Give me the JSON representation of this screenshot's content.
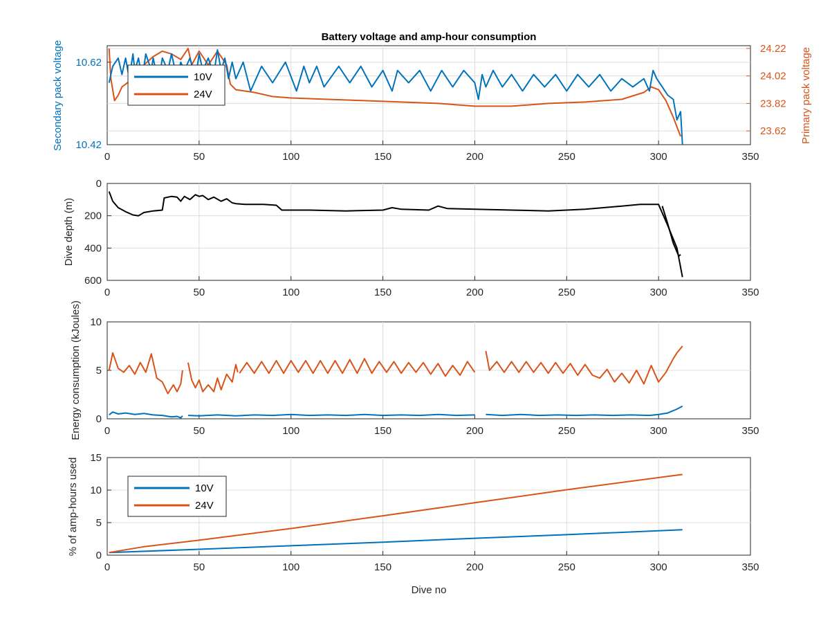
{
  "colors": {
    "v10": "#0072BD",
    "v24": "#D95319",
    "depth": "#000000",
    "axis": "#262626",
    "grid": "#dcdcdc"
  },
  "chart_data": [
    {
      "id": "voltage",
      "type": "line",
      "title": "Battery voltage and amp-hour consumption",
      "xlabel": "",
      "ylabel": "Secondary pack voltage",
      "ylabel_right": "Primary pack voltage",
      "xlim": [
        0,
        350
      ],
      "xticks": [
        "0",
        "50",
        "100",
        "150",
        "200",
        "250",
        "300",
        "350"
      ],
      "ylim": [
        10.42,
        10.66
      ],
      "yticks": [
        "10.42",
        "10.62"
      ],
      "ylim_right": [
        23.52,
        24.24
      ],
      "yticks_right": [
        "23.62",
        "23.82",
        "24.02",
        "24.22"
      ],
      "grid": true,
      "legend": {
        "position": "top-left",
        "entries": [
          "10V",
          "24V"
        ]
      },
      "series": [
        {
          "name": "10V",
          "axis": "left",
          "x": [
            1,
            3,
            6,
            8,
            10,
            12,
            14,
            15,
            17,
            19,
            21,
            24,
            25,
            28,
            30,
            33,
            35,
            38,
            40,
            42,
            45,
            48,
            50,
            52,
            55,
            58,
            60,
            62,
            64,
            66,
            68,
            70,
            74,
            78,
            84,
            90,
            97,
            103,
            107,
            110,
            114,
            118,
            126,
            132,
            138,
            144,
            150,
            155,
            158,
            164,
            170,
            176,
            182,
            188,
            194,
            200,
            202,
            204,
            206,
            210,
            215,
            220,
            226,
            232,
            238,
            244,
            250,
            256,
            262,
            268,
            274,
            280,
            286,
            292,
            295,
            297,
            299,
            302,
            305,
            308,
            310,
            312,
            313
          ],
          "y": [
            10.57,
            10.61,
            10.63,
            10.59,
            10.63,
            10.58,
            10.64,
            10.6,
            10.63,
            10.58,
            10.64,
            10.6,
            10.63,
            10.57,
            10.63,
            10.6,
            10.64,
            10.58,
            10.62,
            10.6,
            10.63,
            10.58,
            10.64,
            10.6,
            10.63,
            10.59,
            10.65,
            10.6,
            10.63,
            10.58,
            10.62,
            10.58,
            10.62,
            10.55,
            10.61,
            10.57,
            10.62,
            10.55,
            10.61,
            10.57,
            10.61,
            10.56,
            10.61,
            10.57,
            10.61,
            10.56,
            10.6,
            10.55,
            10.6,
            10.57,
            10.6,
            10.55,
            10.6,
            10.56,
            10.6,
            10.57,
            10.53,
            10.59,
            10.56,
            10.6,
            10.56,
            10.59,
            10.55,
            10.59,
            10.56,
            10.59,
            10.55,
            10.59,
            10.56,
            10.59,
            10.55,
            10.58,
            10.56,
            10.58,
            10.55,
            10.6,
            10.58,
            10.56,
            10.54,
            10.53,
            10.48,
            10.5,
            10.42
          ]
        },
        {
          "name": "24V",
          "axis": "right",
          "x": [
            1,
            2,
            4,
            6,
            8,
            12,
            16,
            20,
            25,
            30,
            35,
            40,
            44,
            46,
            50,
            55,
            60,
            65,
            67,
            70,
            80,
            90,
            100,
            120,
            140,
            160,
            180,
            190,
            200,
            220,
            240,
            260,
            280,
            292,
            296,
            300,
            304,
            308,
            312
          ],
          "y": [
            24.22,
            24.0,
            23.84,
            23.88,
            23.94,
            23.98,
            24.02,
            24.1,
            24.16,
            24.2,
            24.18,
            24.14,
            24.22,
            24.1,
            24.2,
            24.1,
            24.2,
            24.1,
            23.96,
            23.92,
            23.9,
            23.87,
            23.86,
            23.85,
            23.84,
            23.83,
            23.82,
            23.81,
            23.8,
            23.8,
            23.82,
            23.83,
            23.85,
            23.9,
            23.94,
            23.92,
            23.84,
            23.72,
            23.58
          ]
        }
      ]
    },
    {
      "id": "depth",
      "type": "line",
      "title": "",
      "xlabel": "",
      "ylabel": "Dive depth (m)",
      "xlim": [
        0,
        350
      ],
      "xticks": [
        "0",
        "50",
        "100",
        "150",
        "200",
        "250",
        "300",
        "350"
      ],
      "ylim": [
        0,
        600
      ],
      "y_reversed": true,
      "yticks": [
        "0",
        "200",
        "400",
        "600"
      ],
      "grid": true,
      "series": [
        {
          "name": "",
          "x": [
            1,
            3,
            6,
            10,
            14,
            17,
            20,
            25,
            30,
            31,
            35,
            38,
            40,
            42,
            45,
            48,
            50,
            52,
            55,
            58,
            62,
            65,
            68,
            70,
            75,
            85,
            92,
            95,
            110,
            130,
            150,
            155,
            160,
            175,
            180,
            185,
            200,
            220,
            240,
            260,
            270,
            280,
            290,
            300,
            305,
            310,
            313
          ],
          "y": [
            50,
            110,
            150,
            175,
            195,
            200,
            180,
            170,
            165,
            90,
            80,
            85,
            110,
            80,
            100,
            70,
            80,
            75,
            100,
            85,
            110,
            95,
            120,
            125,
            130,
            130,
            135,
            165,
            165,
            170,
            165,
            150,
            160,
            165,
            140,
            155,
            160,
            165,
            170,
            160,
            150,
            140,
            130,
            130,
            260,
            400,
            580
          ]
        },
        {
          "name": "",
          "x": [
            302,
            305,
            308,
            311,
            312
          ],
          "y": [
            140,
            250,
            370,
            450,
            440
          ]
        }
      ]
    },
    {
      "id": "energy",
      "type": "line",
      "title": "",
      "xlabel": "",
      "ylabel": "Energy consumption (kJoules)",
      "xlim": [
        0,
        350
      ],
      "xticks": [
        "0",
        "50",
        "100",
        "150",
        "200",
        "250",
        "300",
        "350"
      ],
      "ylim": [
        0,
        10
      ],
      "yticks": [
        "0",
        "5",
        "10"
      ],
      "grid": true,
      "series": [
        {
          "name": "24V",
          "segments": [
            {
              "x": [
                1,
                3,
                6,
                9,
                12,
                15,
                18,
                21,
                24,
                27,
                30,
                33,
                36,
                38,
                40,
                41
              ],
              "y": [
                5.0,
                6.8,
                5.2,
                4.8,
                5.5,
                4.6,
                5.8,
                4.8,
                6.7,
                4.2,
                3.8,
                2.6,
                3.5,
                2.8,
                3.6,
                5.0
              ]
            },
            {
              "x": [
                44,
                46,
                48,
                50,
                52,
                55,
                58,
                60,
                62,
                65,
                68,
                70,
                71
              ],
              "y": [
                5.8,
                4.0,
                3.2,
                4.0,
                2.8,
                3.5,
                2.8,
                4.2,
                3.0,
                4.6,
                3.8,
                5.6,
                4.8
              ]
            },
            {
              "x": [
                72,
                76,
                80,
                84,
                88,
                92,
                96,
                100,
                104,
                108,
                112,
                116,
                120,
                124,
                128,
                132,
                136,
                140,
                144,
                148,
                152,
                156,
                160,
                164,
                168,
                172,
                176,
                180,
                184,
                188,
                192,
                196,
                200
              ],
              "y": [
                4.7,
                5.8,
                4.7,
                5.9,
                4.7,
                6.0,
                4.7,
                6.0,
                4.8,
                6.0,
                4.7,
                6.0,
                4.7,
                6.0,
                4.7,
                6.1,
                4.7,
                6.2,
                4.7,
                5.9,
                4.8,
                5.9,
                4.7,
                5.8,
                4.8,
                5.8,
                4.6,
                5.7,
                4.4,
                5.5,
                4.5,
                5.9,
                4.8
              ]
            },
            {
              "x": [
                206,
                208,
                212,
                216,
                220,
                224,
                228,
                232,
                236,
                240,
                244,
                248,
                252,
                256,
                260,
                264,
                268,
                272,
                276,
                280,
                284,
                288,
                292,
                296,
                300,
                304,
                308,
                310,
                313
              ],
              "y": [
                7.0,
                5.0,
                5.9,
                4.8,
                5.9,
                4.8,
                5.9,
                4.8,
                5.8,
                4.7,
                5.8,
                4.7,
                5.7,
                4.5,
                5.6,
                4.5,
                4.2,
                5.1,
                3.8,
                4.7,
                3.7,
                5.0,
                3.6,
                5.5,
                3.8,
                4.8,
                6.2,
                6.8,
                7.5
              ]
            }
          ]
        },
        {
          "name": "10V",
          "segments": [
            {
              "x": [
                1,
                3,
                6,
                10,
                15,
                20,
                25,
                30,
                35,
                38,
                40,
                41
              ],
              "y": [
                0.4,
                0.7,
                0.5,
                0.6,
                0.45,
                0.55,
                0.4,
                0.35,
                0.2,
                0.25,
                0.1,
                0.3
              ]
            },
            {
              "x": [
                44,
                50,
                60,
                70,
                80,
                90,
                100,
                110,
                120,
                130,
                140,
                150,
                160,
                170,
                180,
                190,
                200
              ],
              "y": [
                0.35,
                0.3,
                0.4,
                0.3,
                0.4,
                0.35,
                0.45,
                0.35,
                0.4,
                0.35,
                0.45,
                0.35,
                0.4,
                0.35,
                0.45,
                0.35,
                0.4
              ]
            },
            {
              "x": [
                206,
                215,
                225,
                235,
                245,
                255,
                265,
                275,
                285,
                295,
                300,
                305,
                310,
                313
              ],
              "y": [
                0.45,
                0.35,
                0.45,
                0.35,
                0.4,
                0.35,
                0.4,
                0.35,
                0.4,
                0.35,
                0.45,
                0.6,
                1.0,
                1.3
              ]
            }
          ]
        }
      ]
    },
    {
      "id": "amphours",
      "type": "line",
      "title": "",
      "xlabel": "Dive no",
      "ylabel": "% of amp-hours used",
      "xlim": [
        0,
        350
      ],
      "xticks": [
        "0",
        "50",
        "100",
        "150",
        "200",
        "250",
        "300",
        "350"
      ],
      "ylim": [
        0,
        15
      ],
      "yticks": [
        "0",
        "5",
        "10",
        "15"
      ],
      "grid": true,
      "legend": {
        "position": "top-left",
        "entries": [
          "10V",
          "24V"
        ]
      },
      "series": [
        {
          "name": "10V",
          "x": [
            1,
            50,
            100,
            150,
            200,
            250,
            313
          ],
          "y": [
            0.4,
            0.9,
            1.45,
            2.0,
            2.6,
            3.15,
            3.9
          ]
        },
        {
          "name": "24V",
          "x": [
            1,
            20,
            50,
            100,
            150,
            200,
            250,
            313
          ],
          "y": [
            0.4,
            1.3,
            2.3,
            4.1,
            6.05,
            8.05,
            10.05,
            12.4
          ]
        }
      ]
    }
  ]
}
